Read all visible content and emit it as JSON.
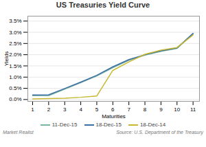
{
  "chart_data": {
    "type": "line",
    "title": "US Treasuries Yield Curve",
    "x_label": "Maturities",
    "y_label": "Yields",
    "annotations": [
      "Market Realist",
      "Source: U.S. Department of the Treasury"
    ],
    "x": [
      1,
      2,
      3,
      4,
      5,
      6,
      7,
      8,
      9,
      10,
      11
    ],
    "series": [
      {
        "name": "11-Dec-15",
        "color": "#7ab5a0",
        "values": [
          0.17,
          0.175,
          0.46,
          0.75,
          1.05,
          1.42,
          1.75,
          1.98,
          2.15,
          2.28,
          2.93
        ]
      },
      {
        "name": "18-Dec-15",
        "color": "#3a6ea5",
        "values": [
          0.2,
          0.21,
          0.49,
          0.78,
          1.08,
          1.46,
          1.78,
          2.0,
          2.17,
          2.3,
          2.95
        ]
      },
      {
        "name": "18-Dec-14",
        "color": "#c8b830",
        "values": [
          0.025,
          0.04,
          0.06,
          0.1,
          0.16,
          1.3,
          1.68,
          2.02,
          2.2,
          2.32,
          2.88
        ]
      }
    ],
    "xlim": [
      0.7,
      11.4
    ],
    "xticks": [
      1,
      2,
      3,
      4,
      5,
      6,
      7,
      8,
      9,
      10,
      11
    ],
    "ylim": [
      -0.08,
      3.72
    ],
    "yticks": [
      {
        "value": 0.0,
        "label": "0.0%"
      },
      {
        "value": 0.5,
        "label": "0.5%"
      },
      {
        "value": 1.0,
        "label": "1.0%"
      },
      {
        "value": 1.5,
        "label": "1.5%"
      },
      {
        "value": 2.0,
        "label": "2.0%"
      },
      {
        "value": 2.5,
        "label": "2.5%"
      },
      {
        "value": 3.0,
        "label": "3.0%"
      },
      {
        "value": 3.5,
        "label": "3.5%"
      }
    ],
    "grid": "y",
    "legend": "bottom"
  }
}
